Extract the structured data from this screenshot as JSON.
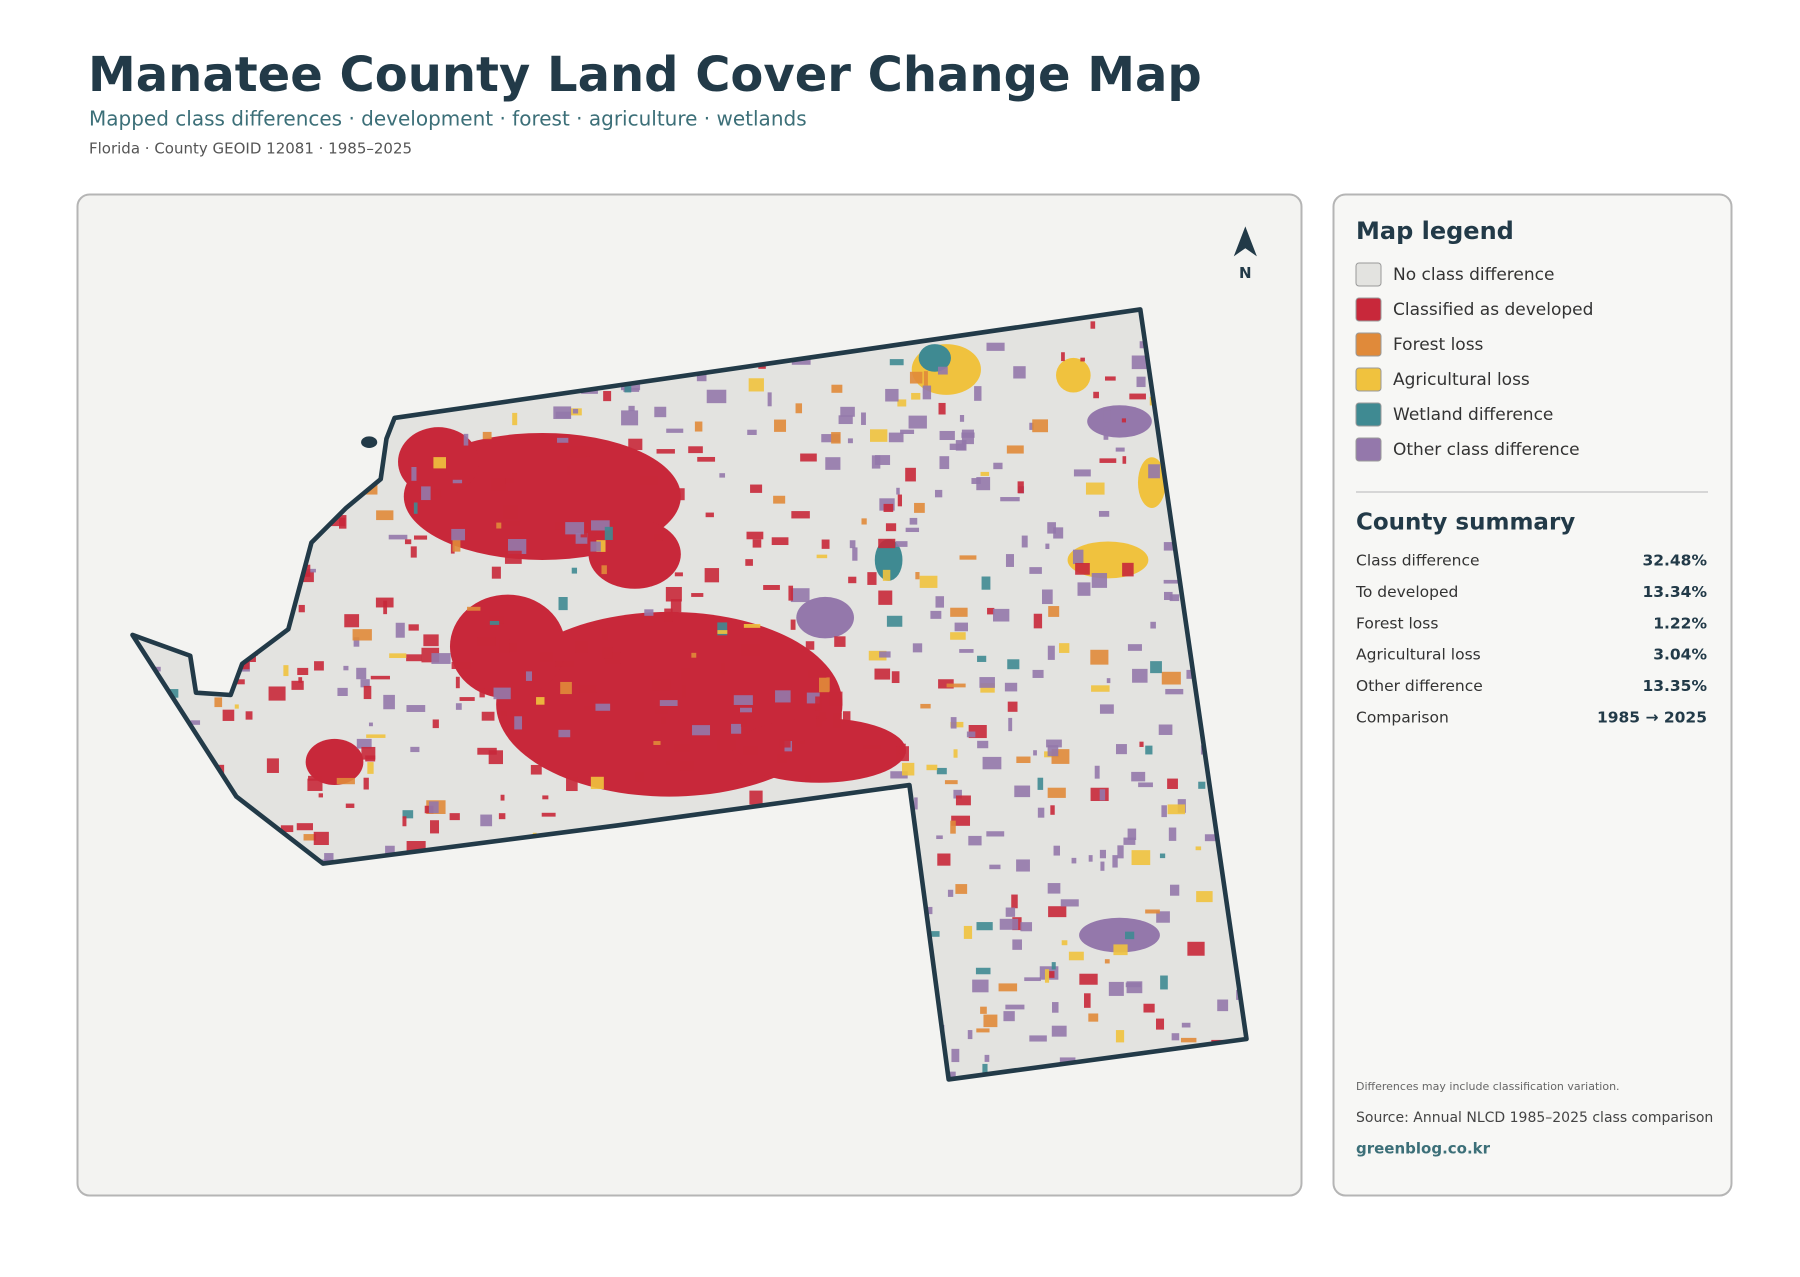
{
  "header": {
    "title": "Manatee County Land Cover Change Map",
    "subtitle": "Mapped class differences · development · forest · agriculture · wetlands",
    "meta": "Florida · County GEOID 12081 · 1985–2025"
  },
  "map": {
    "north_label": "N"
  },
  "legend": {
    "title": "Map legend",
    "items": [
      {
        "label": "No class difference",
        "color": "#e3e3e0"
      },
      {
        "label": "Classified as developed",
        "color": "#c8283a"
      },
      {
        "label": "Forest loss",
        "color": "#e08a3a"
      },
      {
        "label": "Agricultural loss",
        "color": "#f0c23e"
      },
      {
        "label": "Wetland difference",
        "color": "#3f8a92"
      },
      {
        "label": "Other class difference",
        "color": "#9478ab"
      }
    ]
  },
  "summary": {
    "title": "County summary",
    "rows": [
      [
        "Class difference",
        "32.48%"
      ],
      [
        "To developed",
        "13.34%"
      ],
      [
        "Forest loss",
        "1.22%"
      ],
      [
        "Agricultural loss",
        "3.04%"
      ],
      [
        "Other difference",
        "13.35%"
      ],
      [
        "Comparison",
        "1985 → 2025"
      ]
    ]
  },
  "footer": {
    "note": "Differences may include classification variation.",
    "source": "Source: Annual NLCD 1985–2025 class comparison",
    "site": "greenblog.co.kr"
  }
}
